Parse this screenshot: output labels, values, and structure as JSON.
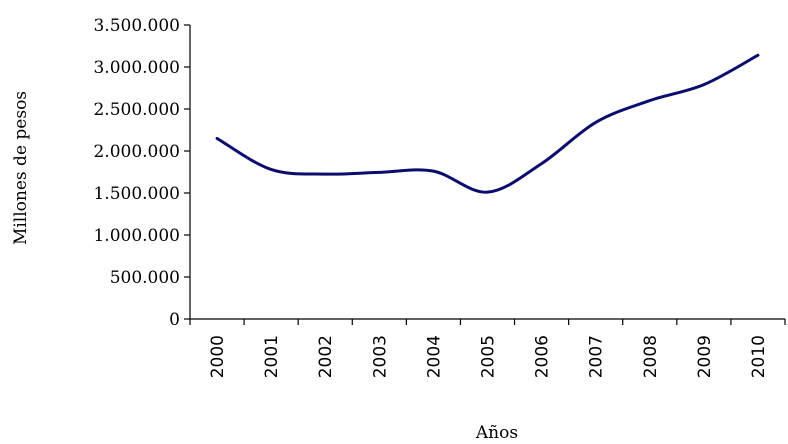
{
  "chart_data": {
    "type": "line",
    "title": "",
    "xlabel": "Años",
    "ylabel": "Millones de pesos",
    "categories": [
      "2000",
      "2001",
      "2002",
      "2003",
      "2004",
      "2005",
      "2006",
      "2007",
      "2008",
      "2009",
      "2010"
    ],
    "series": [
      {
        "values": [
          2150000,
          1780000,
          1725000,
          1745000,
          1760000,
          1510000,
          1850000,
          2340000,
          2600000,
          2790000,
          3140000
        ]
      }
    ],
    "ylim": [
      0,
      3500000
    ],
    "yticks": [
      0,
      500000,
      1000000,
      1500000,
      2000000,
      2500000,
      3000000,
      3500000
    ],
    "ytick_labels": [
      "0",
      "500.000",
      "1.000.000",
      "1.500.000",
      "2.000.000",
      "2.500.000",
      "3.000.000",
      "3.500.000"
    ],
    "grid": false,
    "legend": "none",
    "line_color": "#0c0c6e"
  }
}
